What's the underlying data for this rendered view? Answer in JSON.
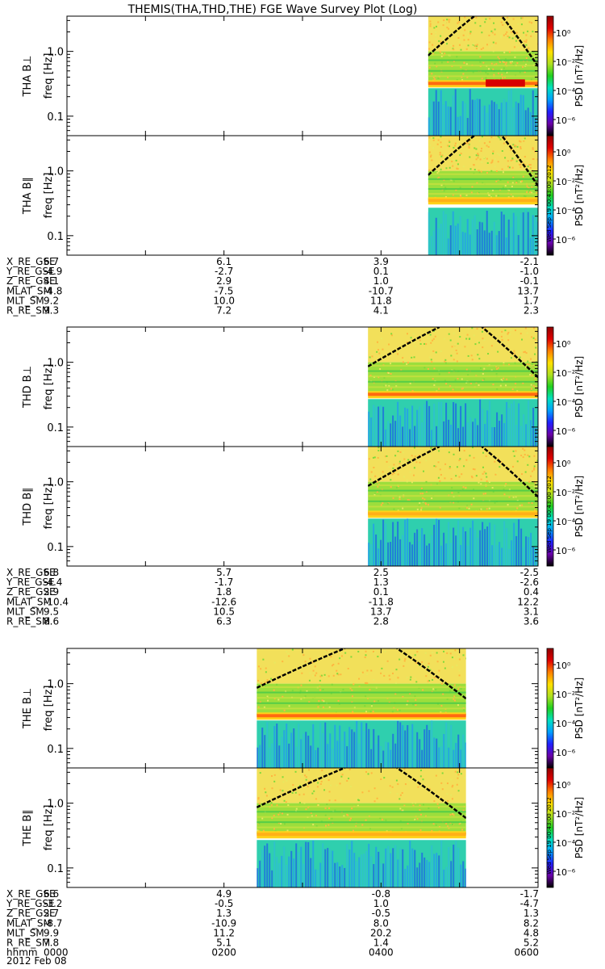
{
  "title": "THEMIS(THA,THD,THE) FGE Wave Survey Plot (Log)",
  "colorbar": {
    "label": "PSD [nT²/Hz]",
    "ticks": [
      "10⁰",
      "10⁻²",
      "10⁻⁴",
      "10⁻⁶"
    ],
    "stops": [
      "#000000",
      "#6a00a8",
      "#1f1fff",
      "#00a0ff",
      "#00e0c0",
      "#20d020",
      "#b0e020",
      "#ffe000",
      "#ff8000",
      "#e00000",
      "#900000"
    ]
  },
  "timestamp": "Wed Sep 19 00:43:00 2012",
  "freq_ticks": [
    "1.0",
    "0.1"
  ],
  "panels": [
    {
      "probe": "THA",
      "ylabel_top": "THA B⊥",
      "ylabel_bot": "THA B∥",
      "axis_label": "freq [Hz]"
    },
    {
      "probe": "THD",
      "ylabel_top": "THD B⊥",
      "ylabel_bot": "THD B∥",
      "axis_label": "freq [Hz]"
    },
    {
      "probe": "THE",
      "ylabel_top": "THE B⊥",
      "ylabel_bot": "THE B∥",
      "axis_label": "freq [Hz]"
    }
  ],
  "ephemeris": [
    {
      "rows": [
        {
          "name": "X_RE_GSE",
          "vals": [
            "6.7",
            "6.1",
            "3.9",
            "-2.1"
          ]
        },
        {
          "name": "Y_RE_GSE",
          "vals": [
            "-4.9",
            "-2.7",
            "0.1",
            "-1.0"
          ]
        },
        {
          "name": "Z_RE_GSE",
          "vals": [
            "4.1",
            "2.9",
            "1.0",
            "-0.1"
          ]
        },
        {
          "name": "MLAT_SM",
          "vals": [
            "-4.8",
            "-7.5",
            "-10.7",
            "13.7"
          ]
        },
        {
          "name": "MLT_SM",
          "vals": [
            "9.2",
            "10.0",
            "11.8",
            "1.7"
          ]
        },
        {
          "name": "R_RE_SM",
          "vals": [
            "9.3",
            "7.2",
            "4.1",
            "2.3"
          ]
        }
      ]
    },
    {
      "rows": [
        {
          "name": "X_RE_GSE",
          "vals": [
            "6.8",
            "5.7",
            "2.5",
            "-2.5"
          ]
        },
        {
          "name": "Y_RE_GSE",
          "vals": [
            "-4.4",
            "-1.7",
            "1.3",
            "-2.6"
          ]
        },
        {
          "name": "Z_RE_GSE",
          "vals": [
            "2.9",
            "1.8",
            "0.1",
            "0.4"
          ]
        },
        {
          "name": "MLAT_SM",
          "vals": [
            "-10.4",
            "-12.6",
            "-11.8",
            "12.2"
          ]
        },
        {
          "name": "MLT_SM",
          "vals": [
            "9.5",
            "10.5",
            "13.7",
            "3.1"
          ]
        },
        {
          "name": "R_RE_SM",
          "vals": [
            "8.6",
            "6.3",
            "2.8",
            "3.6"
          ]
        }
      ]
    },
    {
      "rows": [
        {
          "name": "X_RE_GSE",
          "vals": [
            "6.6",
            "4.9",
            "-0.8",
            "-1.7"
          ]
        },
        {
          "name": "Y_RE_GSE",
          "vals": [
            "-3.2",
            "-0.5",
            "1.0",
            "-4.7"
          ]
        },
        {
          "name": "Z_RE_GSE",
          "vals": [
            "2.7",
            "1.3",
            "-0.5",
            "1.3"
          ]
        },
        {
          "name": "MLAT_SM",
          "vals": [
            "-8.7",
            "-10.9",
            "8.0",
            "8.2"
          ]
        },
        {
          "name": "MLT_SM",
          "vals": [
            "9.9",
            "11.2",
            "20.2",
            "4.8"
          ]
        },
        {
          "name": "R_RE_SM",
          "vals": [
            "7.8",
            "5.1",
            "1.4",
            "5.2"
          ]
        },
        {
          "name": "hhmm",
          "vals": [
            "0000",
            "0200",
            "0400",
            "0600"
          ]
        }
      ]
    }
  ],
  "date_label": "2012 Feb 08",
  "chart_data": {
    "type": "heatmap",
    "title": "THEMIS(THA,THD,THE) FGE Wave Survey Plot (Log)",
    "xlabel": "hhmm",
    "x_ticks": [
      "0000",
      "0200",
      "0400",
      "0600"
    ],
    "xlim": [
      "0000",
      "0600"
    ],
    "ylabel": "freq [Hz]",
    "yscale": "log",
    "ylim": [
      0.05,
      3.5
    ],
    "colorbar_label": "PSD [nT²/Hz]",
    "colorbar_range": [
      1e-06,
      10
    ],
    "colorbar_scale": "log",
    "panels": [
      {
        "probe": "THA",
        "component": "B⊥",
        "data_start_hhmm": "0436",
        "data_end_hhmm": "0600",
        "band_freq_hz": 0.32,
        "cutoff_freq_hz": 0.27,
        "intense_interval_hhmm": [
          "0520",
          "0550"
        ]
      },
      {
        "probe": "THA",
        "component": "B∥",
        "data_start_hhmm": "0436",
        "data_end_hhmm": "0600",
        "band_freq_hz": 0.35,
        "cutoff_freq_hz": 0.27
      },
      {
        "probe": "THD",
        "component": "B⊥",
        "data_start_hhmm": "0350",
        "data_end_hhmm": "0600",
        "band_freq_hz": 0.32,
        "cutoff_freq_hz": 0.27
      },
      {
        "probe": "THD",
        "component": "B∥",
        "data_start_hhmm": "0350",
        "data_end_hhmm": "0600",
        "band_freq_hz": 0.32,
        "cutoff_freq_hz": 0.27
      },
      {
        "probe": "THE",
        "component": "B⊥",
        "data_start_hhmm": "0225",
        "data_end_hhmm": "0505",
        "band_freq_hz": 0.32,
        "cutoff_freq_hz": 0.27
      },
      {
        "probe": "THE",
        "component": "B∥",
        "data_start_hhmm": "0225",
        "data_end_hhmm": "0505",
        "band_freq_hz": 0.33,
        "cutoff_freq_hz": 0.27
      }
    ]
  }
}
